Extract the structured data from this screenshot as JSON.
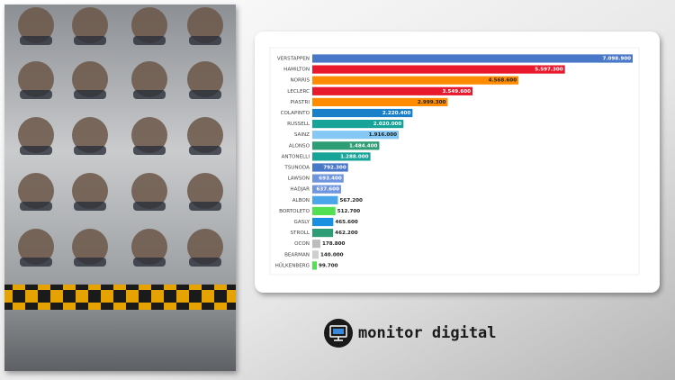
{
  "chart_data": {
    "type": "bar",
    "orientation": "horizontal",
    "categories": [
      "VERSTAPPEN",
      "HAMILTON",
      "NORRIS",
      "LECLERC",
      "PIASTRI",
      "COLAPINTO",
      "RUSSELL",
      "SAINZ",
      "ALONSO",
      "ANTONELLI",
      "TSUNODA",
      "LAWSON",
      "HADJAR",
      "ALBON",
      "BORTOLETO",
      "GASLY",
      "STROLL",
      "OCON",
      "BEARMAN",
      "HÜLKENBERG"
    ],
    "values": [
      7098900,
      5597300,
      4568600,
      3549600,
      2999300,
      2220400,
      2020000,
      1916000,
      1484400,
      1288000,
      792300,
      693400,
      637600,
      567200,
      512700,
      465600,
      462200,
      178800,
      140000,
      99700
    ],
    "value_labels": [
      "7.098.900",
      "5.597.300",
      "4.568.600",
      "3.549.600",
      "2.999.300",
      "2.220.400",
      "2.020.000",
      "1.916.000",
      "1.484.400",
      "1.288.000",
      "792.300",
      "693.400",
      "637.600",
      "567.200",
      "512.700",
      "465.600",
      "462.200",
      "178.800",
      "140.000",
      "99.700"
    ],
    "colors": [
      "#4a78c8",
      "#e8192c",
      "#ff8c00",
      "#e8192c",
      "#ff8c00",
      "#1a7fc9",
      "#17a398",
      "#86c8f5",
      "#2e9c74",
      "#17a398",
      "#4a78c8",
      "#6f95de",
      "#6f95de",
      "#4aa6e8",
      "#52e052",
      "#1a90e0",
      "#2e9c74",
      "#bdbdbd",
      "#cfcfcf",
      "#52e052"
    ]
  },
  "brand": "monitor digital"
}
